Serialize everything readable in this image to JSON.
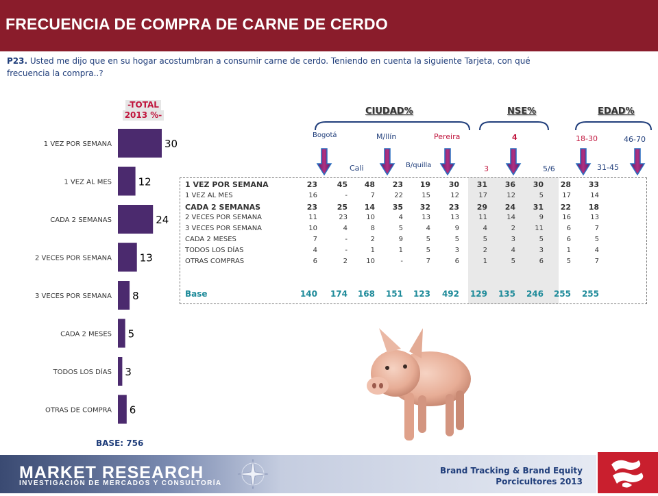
{
  "header": {
    "title": "FRECUENCIA DE COMPRA DE CARNE DE  CERDO"
  },
  "question": {
    "code": "P23.",
    "text": "Usted me dijo que en su hogar acostumbran a consumir carne de cerdo. Teniendo en cuenta la siguiente Tarjeta, con qué frecuencia la compra..?"
  },
  "total": {
    "line1": "-TOTAL",
    "line2": "2013 %-",
    "base_label": "BASE:",
    "base_value": "756"
  },
  "chart_data": {
    "type": "bar",
    "orientation": "horizontal",
    "categories": [
      "1 VEZ POR SEMANA",
      "1 VEZ AL MES",
      "CADA 2 SEMANAS",
      "2 VECES POR SEMANA",
      "3 VECES POR SEMANA",
      "CADA 2 MESES",
      "TODOS LOS DÍAS",
      "OTRAS DE COMPRA"
    ],
    "values": [
      30,
      12,
      24,
      13,
      8,
      5,
      3,
      6
    ],
    "xlim": [
      0,
      30
    ],
    "bar_color": "#4b2a6e"
  },
  "groups": {
    "ciudad": "CIUDAD%",
    "nse": "NSE%",
    "edad": "EDAD%"
  },
  "columns": {
    "bogota": "Bogotá",
    "mllin": "M/llín",
    "pereira": "Pereira",
    "cali": "Cali",
    "bquilla": "B/quilla",
    "nse4": "4",
    "nse3": "3",
    "nse56": "5/6",
    "e1830": "18-30",
    "e4670": "46-70",
    "e3145": "31-45"
  },
  "table": {
    "rows": [
      {
        "label": "1 VEZ POR SEMANA",
        "bold": true,
        "values": [
          "23",
          "45",
          "48",
          "23",
          "19",
          "30",
          "31",
          "36",
          "30",
          "28",
          "33"
        ]
      },
      {
        "label": "1 VEZ AL MES",
        "bold": false,
        "values": [
          "16",
          "-",
          "7",
          "22",
          "15",
          "12",
          "17",
          "12",
          "5",
          "17",
          "14"
        ]
      },
      {
        "label": "CADA 2 SEMANAS",
        "bold": true,
        "values": [
          "23",
          "25",
          "14",
          "35",
          "32",
          "23",
          "29",
          "24",
          "31",
          "22",
          "18"
        ]
      },
      {
        "label": "2 VECES POR SEMANA",
        "bold": false,
        "values": [
          "11",
          "23",
          "10",
          "4",
          "13",
          "13",
          "11",
          "14",
          "9",
          "16",
          "13"
        ]
      },
      {
        "label": "3 VECES POR SEMANA",
        "bold": false,
        "values": [
          "10",
          "4",
          "8",
          "5",
          "4",
          "9",
          "4",
          "2",
          "11",
          "6",
          "7"
        ]
      },
      {
        "label": "CADA 2 MESES",
        "bold": false,
        "values": [
          "7",
          "-",
          "2",
          "9",
          "5",
          "5",
          "5",
          "3",
          "5",
          "6",
          "5"
        ]
      },
      {
        "label": "TODOS LOS DÍAS",
        "bold": false,
        "values": [
          "4",
          "-",
          "1",
          "1",
          "5",
          "3",
          "2",
          "4",
          "3",
          "1",
          "4"
        ]
      },
      {
        "label": "OTRAS COMPRAS",
        "bold": false,
        "values": [
          "6",
          "2",
          "10",
          "-",
          "7",
          "6",
          "1",
          "5",
          "6",
          "5",
          "7"
        ]
      }
    ],
    "base": {
      "label": "Base",
      "values": [
        "140",
        "174",
        "168",
        "151",
        "123",
        "492",
        "129",
        "135",
        "246",
        "255",
        "255"
      ]
    }
  },
  "footer": {
    "brand": "MARKET RESEARCH",
    "brand_sub": "INVESTIGACIÓN DE MERCADOS Y CONSULTORÍA",
    "line1": "Brand Tracking & Brand Equity",
    "line2": "Porcicultores 2013"
  }
}
